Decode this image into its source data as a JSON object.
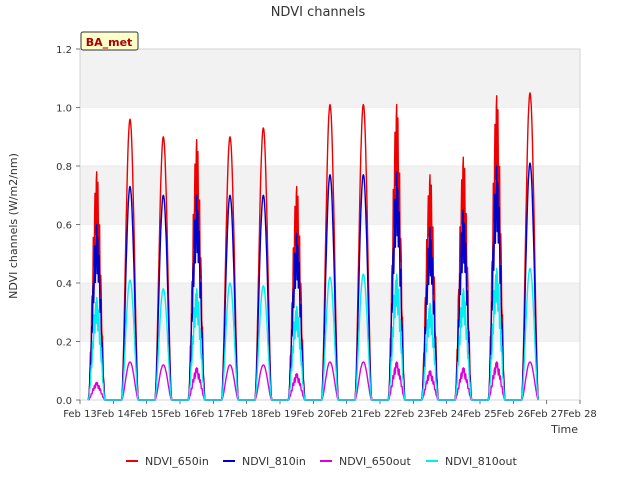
{
  "chart_data": {
    "type": "line",
    "title": "NDVI channels",
    "xlabel": "Time",
    "ylabel": "NDVI channels (W/m2/nm)",
    "ylim": [
      0,
      1.2
    ],
    "yticks": [
      0.0,
      0.2,
      0.4,
      0.6,
      0.8,
      1.0,
      1.2
    ],
    "ytick_labels": [
      "0.0",
      "0.2",
      "0.4",
      "0.6",
      "0.8",
      "1.0",
      "1.2"
    ],
    "xlim": [
      13,
      28
    ],
    "xticks": [
      13,
      14,
      15,
      16,
      17,
      18,
      19,
      20,
      21,
      22,
      23,
      24,
      25,
      26,
      27,
      28
    ],
    "xtick_labels": [
      "Feb 13",
      "Feb 14",
      "Feb 15",
      "Feb 16",
      "Feb 17",
      "Feb 18",
      "Feb 19",
      "Feb 20",
      "Feb 21",
      "Feb 22",
      "Feb 23",
      "Feb 24",
      "Feb 25",
      "Feb 26",
      "Feb 27",
      "Feb 28"
    ],
    "site_label": "BA_met",
    "legend_position": "bottom",
    "grid": "horizontal bands",
    "day_center": 0.5,
    "day_width": 0.25,
    "series": [
      {
        "name": "NDVI_650in",
        "color": "#ee0000",
        "daily_peaks": [
          0.78,
          0.96,
          0.9,
          0.89,
          0.9,
          0.93,
          0.73,
          1.01,
          1.01,
          1.01,
          0.77,
          0.83,
          1.04,
          1.05
        ],
        "days": [
          13.5,
          14.5,
          15.5,
          16.5,
          17.5,
          18.5,
          19.5,
          20.5,
          21.5,
          22.5,
          23.5,
          24.5,
          25.5,
          26.5
        ]
      },
      {
        "name": "NDVI_810in",
        "color": "#0000cc",
        "daily_peaks": [
          0.6,
          0.73,
          0.7,
          0.7,
          0.7,
          0.7,
          0.57,
          0.77,
          0.77,
          0.78,
          0.59,
          0.65,
          0.8,
          0.81
        ],
        "days": [
          13.5,
          14.5,
          15.5,
          16.5,
          17.5,
          18.5,
          19.5,
          20.5,
          21.5,
          22.5,
          23.5,
          24.5,
          25.5,
          26.5
        ]
      },
      {
        "name": "NDVI_650out",
        "color": "#dd00dd",
        "daily_peaks": [
          0.06,
          0.13,
          0.12,
          0.11,
          0.12,
          0.12,
          0.09,
          0.13,
          0.13,
          0.13,
          0.1,
          0.11,
          0.13,
          0.13
        ],
        "days": [
          13.5,
          14.5,
          15.5,
          16.5,
          17.5,
          18.5,
          19.5,
          20.5,
          21.5,
          22.5,
          23.5,
          24.5,
          25.5,
          26.5
        ]
      },
      {
        "name": "NDVI_810out",
        "color": "#00eeee",
        "daily_peaks": [
          0.35,
          0.41,
          0.38,
          0.38,
          0.4,
          0.39,
          0.32,
          0.42,
          0.43,
          0.43,
          0.33,
          0.38,
          0.45,
          0.45
        ],
        "days": [
          13.5,
          14.5,
          15.5,
          16.5,
          17.5,
          18.5,
          19.5,
          20.5,
          21.5,
          22.5,
          23.5,
          24.5,
          25.5,
          26.5
        ]
      }
    ]
  }
}
